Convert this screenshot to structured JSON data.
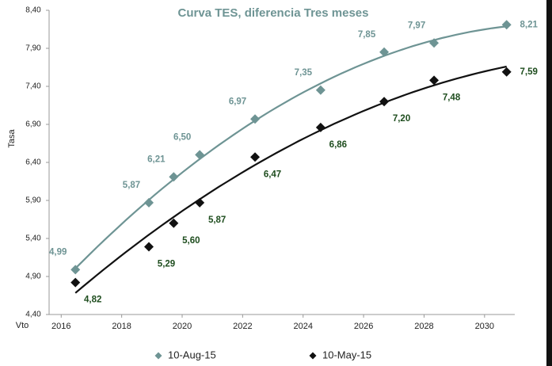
{
  "chart_data": {
    "type": "scatter",
    "title": "Curva TES, diferencia Tres meses",
    "y_label": "Tasa",
    "x_label": "Vto",
    "x": [
      2016.47,
      2018.9,
      2019.72,
      2020.58,
      2022.41,
      2024.58,
      2026.68,
      2028.33,
      2030.73
    ],
    "series": [
      {
        "name": "10-Aug-15",
        "color": "#6e9494",
        "label_color": "#6e9494",
        "values": [
          4.99,
          5.87,
          6.21,
          6.5,
          6.97,
          7.35,
          7.85,
          7.97,
          8.21
        ],
        "value_labels": [
          "4,99",
          "5,87",
          "6,21",
          "6,50",
          "6,97",
          "7,35",
          "7,85",
          "7,97",
          "8,21"
        ]
      },
      {
        "name": "10-May-15",
        "color": "#111111",
        "label_color": "#1e4d1e",
        "values": [
          4.82,
          5.29,
          5.6,
          5.87,
          6.47,
          6.86,
          7.2,
          7.48,
          7.59
        ],
        "value_labels": [
          "4,82",
          "5,29",
          "5,60",
          "5,87",
          "6,47",
          "6,86",
          "7,20",
          "7,48",
          "7,59"
        ]
      }
    ],
    "xlim": [
      2015.6,
      2031.0
    ],
    "xticks": [
      2016,
      2018,
      2020,
      2022,
      2024,
      2026,
      2028,
      2030
    ],
    "ylim": [
      4.4,
      8.4
    ],
    "yticks": [
      {
        "value": 4.4,
        "label": "4,40"
      },
      {
        "value": 4.9,
        "label": "4,90"
      },
      {
        "value": 5.4,
        "label": "5,40"
      },
      {
        "value": 5.9,
        "label": "5,90"
      },
      {
        "value": 6.4,
        "label": "6,40"
      },
      {
        "value": 6.9,
        "label": "6,90"
      },
      {
        "value": 7.4,
        "label": "7,40"
      },
      {
        "value": 7.9,
        "label": "7,90"
      },
      {
        "value": 8.4,
        "label": "8,40"
      }
    ],
    "trendline": true,
    "legend": "bottom"
  }
}
